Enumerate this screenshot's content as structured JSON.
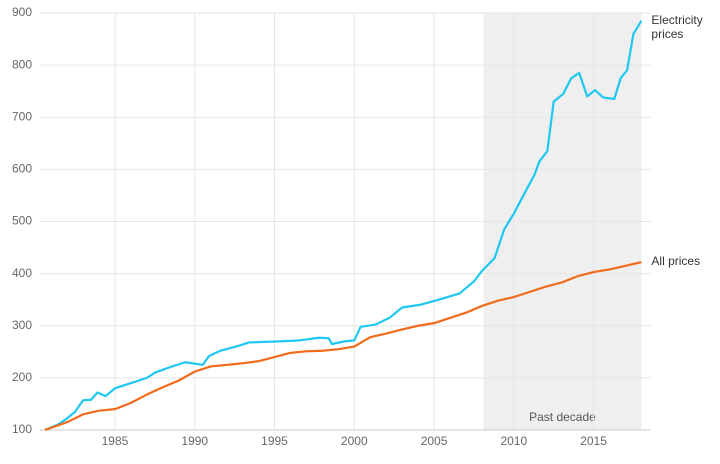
{
  "chart_data": {
    "type": "line",
    "xlim": [
      1980.3,
      2018.6
    ],
    "ylim": [
      100,
      900
    ],
    "xticks": [
      1985,
      1990,
      1995,
      2000,
      2005,
      2010,
      2015
    ],
    "yticks": [
      100,
      200,
      300,
      400,
      500,
      600,
      700,
      800,
      900
    ],
    "grid": true,
    "shade": {
      "x0": 2008.1,
      "x1": 2018,
      "label": "Past decade",
      "color": "#efefef"
    },
    "series": [
      {
        "name": "Electricity prices",
        "color": "#1fc8f0",
        "x": [
          1980.6,
          1981.4,
          1981.9,
          1982.5,
          1983,
          1983.5,
          1983.9,
          1984.4,
          1985,
          1986,
          1987,
          1987.5,
          1988.4,
          1989.4,
          1990.5,
          1990.9,
          1991.6,
          1992.8,
          1993.4,
          1995.3,
          1996.6,
          1997.8,
          1998.4,
          1998.6,
          1999.4,
          2000,
          2000.4,
          2001.3,
          2002.2,
          2003,
          2004.1,
          2005.3,
          2006.6,
          2007.5,
          2008,
          2008.8,
          2009.4,
          2010,
          2010.6,
          2011.3,
          2011.6,
          2012.1,
          2012.5,
          2013.1,
          2013.6,
          2014.1,
          2014.6,
          2015.1,
          2015.6,
          2016.3,
          2016.7,
          2017.1,
          2017.5,
          2018
        ],
        "values": [
          100,
          110,
          120,
          135,
          157,
          158,
          172,
          165,
          180,
          190,
          200,
          210,
          220,
          230,
          225,
          242,
          252,
          262,
          268,
          270,
          272,
          277,
          276,
          265,
          270,
          272,
          298,
          302,
          315,
          335,
          340,
          350,
          362,
          385,
          405,
          430,
          485,
          515,
          550,
          590,
          615,
          635,
          730,
          745,
          775,
          785,
          740,
          752,
          738,
          735,
          775,
          790,
          860,
          885
        ]
      },
      {
        "name": "All prices",
        "color": "#f26a1b",
        "x": [
          1980.6,
          1982,
          1983,
          1984,
          1985,
          1986,
          1987,
          1988,
          1989,
          1990,
          1991,
          1992,
          1993,
          1994,
          1995,
          1996,
          1997,
          1998,
          1999,
          2000,
          2001,
          2002,
          2003,
          2004,
          2005,
          2006,
          2007,
          2008,
          2009,
          2010,
          2011,
          2012,
          2013,
          2014,
          2015,
          2016,
          2017,
          2018
        ],
        "values": [
          100,
          115,
          130,
          137,
          140,
          152,
          168,
          182,
          195,
          212,
          222,
          225,
          228,
          232,
          240,
          248,
          251,
          252,
          255,
          260,
          278,
          285,
          293,
          300,
          305,
          315,
          325,
          338,
          348,
          355,
          365,
          375,
          383,
          395,
          403,
          408,
          415,
          422
        ]
      }
    ]
  }
}
